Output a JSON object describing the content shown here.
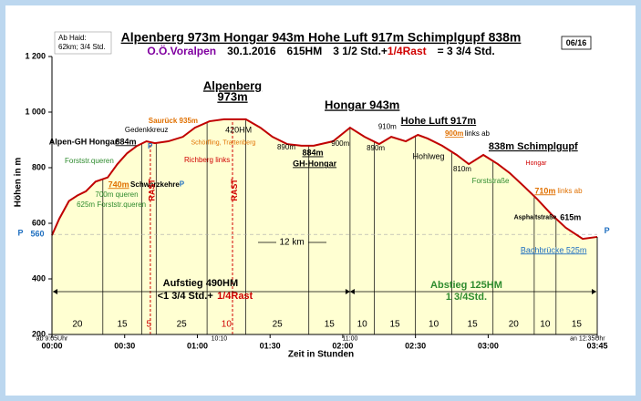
{
  "chart_data": {
    "type": "line",
    "title": "Alpenberg 973m  Hongar 943m  Hohe Luft 917m  Schimplgupf 838m",
    "subtitle_parts": [
      {
        "text": "O.Ö.Voralpen",
        "color": "#8000a0"
      },
      {
        "text": "30.1.2016",
        "color": "#000000"
      },
      {
        "text": "615HM",
        "color": "#000000"
      },
      {
        "text": "3 1/2 Std.+",
        "color": "#000000"
      },
      {
        "text": "1/4Rast",
        "color": "#d00000"
      },
      {
        "text": "= 3 3/4 Std.",
        "color": "#000000"
      }
    ],
    "info_box": [
      "Ab Haid:",
      "62km;  3/4 Std."
    ],
    "badge": "06/16",
    "x_label": "Zeit in Stunden",
    "y_label": "Höhen in m",
    "xlim": [
      0,
      225
    ],
    "ylim": [
      200,
      1200
    ],
    "xticks": [
      {
        "value": 0,
        "label": "00:00"
      },
      {
        "value": 30,
        "label": "00:30"
      },
      {
        "value": 60,
        "label": "01:00"
      },
      {
        "value": 90,
        "label": "01:30"
      },
      {
        "value": 120,
        "label": "02:00"
      },
      {
        "value": 150,
        "label": "02:30"
      },
      {
        "value": 180,
        "label": "03:00"
      },
      {
        "value": 225,
        "label": "03:45"
      }
    ],
    "yticks": [
      200,
      400,
      600,
      800,
      {
        "value": 1000,
        "label": "1 000"
      },
      {
        "value": 1200,
        "label": "1 200"
      }
    ],
    "line_color": "#c00000",
    "fill_color": "#ffffd2",
    "x": [
      0,
      3,
      7,
      10.5,
      14,
      18,
      23,
      27,
      31,
      35,
      39,
      42.5,
      48,
      54,
      59,
      65,
      71,
      80,
      86,
      91,
      97,
      103,
      108,
      116,
      123,
      129,
      135,
      140,
      146,
      151,
      155,
      161,
      167,
      172,
      178,
      184,
      189,
      195,
      200,
      206,
      212,
      219,
      225
    ],
    "values": [
      557,
      616,
      680,
      700,
      715,
      750,
      765,
      813,
      852,
      878,
      895,
      888,
      895,
      911,
      944,
      967,
      974,
      974,
      944,
      911,
      885,
      879,
      879,
      895,
      944,
      911,
      885,
      911,
      895,
      918,
      905,
      879,
      846,
      813,
      846,
      813,
      780,
      731,
      689,
      633,
      584,
      544,
      551
    ],
    "segments": {
      "minutes": [
        20,
        15,
        5,
        25,
        10,
        25,
        15,
        10,
        15,
        10,
        15,
        20,
        10,
        15
      ],
      "colors": [
        "#000000",
        "#000000",
        "#d00000",
        "#000000",
        "#d00000",
        "#000000",
        "#000000",
        "#000000",
        "#000000",
        "#000000",
        "#000000",
        "#000000",
        "#000000",
        "#000000"
      ],
      "bounds": [
        0,
        21,
        37,
        43,
        64,
        80,
        106,
        123,
        133,
        150,
        165,
        182,
        199,
        208,
        225
      ]
    },
    "rest_lines": [
      40.6,
      74.5
    ],
    "annotations": [
      {
        "text": "Alpenberg",
        "x": 74.5,
        "y": 1092,
        "size": 13,
        "bold": true,
        "underline": true
      },
      {
        "text": "973m",
        "x": 74.5,
        "y": 1052,
        "size": 13,
        "bold": true,
        "underline": true
      },
      {
        "text": "Hongar 943m",
        "x": 128,
        "y": 1023,
        "size": 13,
        "bold": true,
        "underline": true
      },
      {
        "text": "Hohe Luft 917m",
        "x": 159.5,
        "y": 967,
        "size": 11,
        "bold": true,
        "underline": true
      },
      {
        "text": "838m Schimplgupf",
        "x": 198.6,
        "y": 875,
        "size": 11,
        "bold": true,
        "underline": true
      },
      {
        "text": "Alpen-GH Hongar",
        "x": 13,
        "y": 892,
        "size": 9,
        "bold": true
      },
      {
        "text": "884m",
        "x": 30.5,
        "y": 892,
        "size": 9,
        "bold": true,
        "underline": true
      },
      {
        "text": "Gedenkkreuz",
        "x": 39,
        "y": 934,
        "size": 8
      },
      {
        "text": "Saurück 935m",
        "x": 50,
        "y": 967,
        "size": 8,
        "bold": true,
        "color": "#e07000"
      },
      {
        "text": "Schörfling, Trattenberg",
        "x": 70.7,
        "y": 889,
        "size": 7,
        "color": "#e07000"
      },
      {
        "text": "420HM",
        "x": 77,
        "y": 934,
        "size": 9
      },
      {
        "text": "Richberg links",
        "x": 64,
        "y": 826,
        "size": 8,
        "color": "#d00000"
      },
      {
        "text": "Forststr.queren",
        "x": 15.4,
        "y": 823,
        "size": 8,
        "color": "#2e8b2e"
      },
      {
        "text": "740m",
        "x": 27.5,
        "y": 738,
        "size": 9,
        "bold": true,
        "underline": true,
        "color": "#e07000"
      },
      {
        "text": "Schwarzkehre",
        "x": 42.5,
        "y": 738,
        "size": 8,
        "bold": true
      },
      {
        "text": "700m queren",
        "x": 26.7,
        "y": 702,
        "size": 8,
        "color": "#2e8b2e"
      },
      {
        "text": "625m Forststr.queren",
        "x": 24.5,
        "y": 666,
        "size": 8,
        "color": "#2e8b2e"
      },
      {
        "text": "890m",
        "x": 96.7,
        "y": 872,
        "size": 8
      },
      {
        "text": "884m",
        "x": 107.6,
        "y": 852,
        "size": 9,
        "bold": true,
        "underline": true
      },
      {
        "text": "GH-Hongar",
        "x": 108.4,
        "y": 813,
        "size": 9,
        "bold": true,
        "underline": true
      },
      {
        "text": "900m",
        "x": 119,
        "y": 885,
        "size": 8
      },
      {
        "text": "910m",
        "x": 138.4,
        "y": 947,
        "size": 8
      },
      {
        "text": "890m",
        "x": 133.6,
        "y": 869,
        "size": 8
      },
      {
        "text": "900m",
        "x": 166,
        "y": 921,
        "size": 8,
        "bold": true,
        "underline": true,
        "color": "#e07000"
      },
      {
        "text": "links ab",
        "x": 175.5,
        "y": 921,
        "size": 8
      },
      {
        "text": "Hohlweg",
        "x": 155.4,
        "y": 839,
        "size": 9
      },
      {
        "text": "810m",
        "x": 169.3,
        "y": 793,
        "size": 8
      },
      {
        "text": "Hongar",
        "x": 199.8,
        "y": 816,
        "size": 7,
        "color": "#d00000"
      },
      {
        "text": "Forststraße",
        "x": 181,
        "y": 751,
        "size": 8,
        "color": "#2e8b2e"
      },
      {
        "text": "710m",
        "x": 203.5,
        "y": 715,
        "size": 9,
        "bold": true,
        "underline": true,
        "color": "#e07000"
      },
      {
        "text": "links ab",
        "x": 213.7,
        "y": 715,
        "size": 8,
        "color": "#e07000"
      },
      {
        "text": "Asphaltstraße",
        "x": 199.4,
        "y": 620,
        "size": 7,
        "bold": true
      },
      {
        "text": "615m",
        "x": 214,
        "y": 620,
        "size": 9,
        "bold": true
      },
      {
        "text": "Bachbrücke 525m",
        "x": 207,
        "y": 502,
        "size": 9,
        "underline": true,
        "color": "#1f6fc0"
      },
      {
        "text": "12 km",
        "x": 99,
        "y": 531,
        "size": 10
      },
      {
        "text": "Aufstieg 490HM",
        "x": 61.3,
        "y": 384,
        "size": 11,
        "bold": true
      },
      {
        "text": "<1 3/4 Std.+",
        "x": 55,
        "y": 338,
        "size": 11,
        "bold": true
      },
      {
        "text": "1/4Rast",
        "x": 75.5,
        "y": 338,
        "size": 11,
        "bold": true,
        "color": "#d00000"
      },
      {
        "text": "Abstieg 125HM",
        "x": 171,
        "y": 377,
        "size": 11,
        "bold": true,
        "color": "#2e8b2e"
      },
      {
        "text": "1 3/4Std.",
        "x": 171,
        "y": 334,
        "size": 11,
        "bold": true,
        "color": "#2e8b2e"
      },
      {
        "text": "RAST",
        "x": 41.5,
        "y": 720,
        "size": 9,
        "bold": true,
        "color": "#d00000",
        "rotate": true
      },
      {
        "text": "RAST",
        "x": 75.5,
        "y": 720,
        "size": 9,
        "bold": true,
        "color": "#d00000",
        "rotate": true
      },
      {
        "text": "ab 9:05Uhr",
        "x": 0,
        "y": 185,
        "size": 7
      },
      {
        "text": "10:10",
        "x": 69,
        "y": 185,
        "size": 7
      },
      {
        "text": "11:00",
        "x": 123,
        "y": 185,
        "size": 7
      },
      {
        "text": "an 12:35Uhr",
        "x": 221,
        "y": 185,
        "size": 7
      },
      {
        "text": "P",
        "x": -13,
        "y": 563,
        "size": 9,
        "bold": true,
        "color": "#1f6fc0"
      },
      {
        "text": "560",
        "x": -6,
        "y": 560,
        "size": 9,
        "bold": true,
        "color": "#1f6fc0"
      },
      {
        "text": "P",
        "x": 229,
        "y": 572,
        "size": 9,
        "bold": true,
        "color": "#1f6fc0"
      },
      {
        "text": "P",
        "x": 40.5,
        "y": 875,
        "size": 8,
        "bold": true,
        "color": "#1f6fc0"
      },
      {
        "text": "P",
        "x": 53.6,
        "y": 740,
        "size": 8,
        "bold": true,
        "color": "#1f6fc0"
      }
    ]
  }
}
